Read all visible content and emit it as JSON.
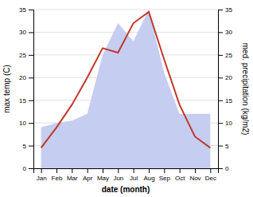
{
  "chart_data": {
    "type": "line",
    "categories": [
      "Jan",
      "Feb",
      "Mar",
      "Apr",
      "May",
      "Jun",
      "Jul",
      "Aug",
      "Sep",
      "Oct",
      "Nov",
      "Dec"
    ],
    "xlabel": "date (month)",
    "ylabel": "max temp (C)",
    "y2label": "med. precipitation (kg/m2)",
    "series": [
      {
        "type": "area",
        "axis": "y2",
        "color": "#c5cdf0",
        "values": [
          9.0,
          10.0,
          10.5,
          12.0,
          25.0,
          32.0,
          28.0,
          35.0,
          21.0,
          12.0,
          12.0,
          12.0
        ]
      },
      {
        "color": "#c0392b",
        "values": [
          4.5,
          9.0,
          14.0,
          20.0,
          26.5,
          25.5,
          32.0,
          34.5,
          24.0,
          14.0,
          7.0,
          4.5
        ]
      }
    ],
    "ylim": [
      0,
      35
    ],
    "yticks": [
      0,
      5,
      10,
      15,
      20,
      25,
      30,
      35
    ],
    "y2lim": [
      0,
      35
    ],
    "y2ticks": [
      0,
      5,
      10,
      15,
      20,
      25,
      30,
      35
    ],
    "grid": true
  }
}
